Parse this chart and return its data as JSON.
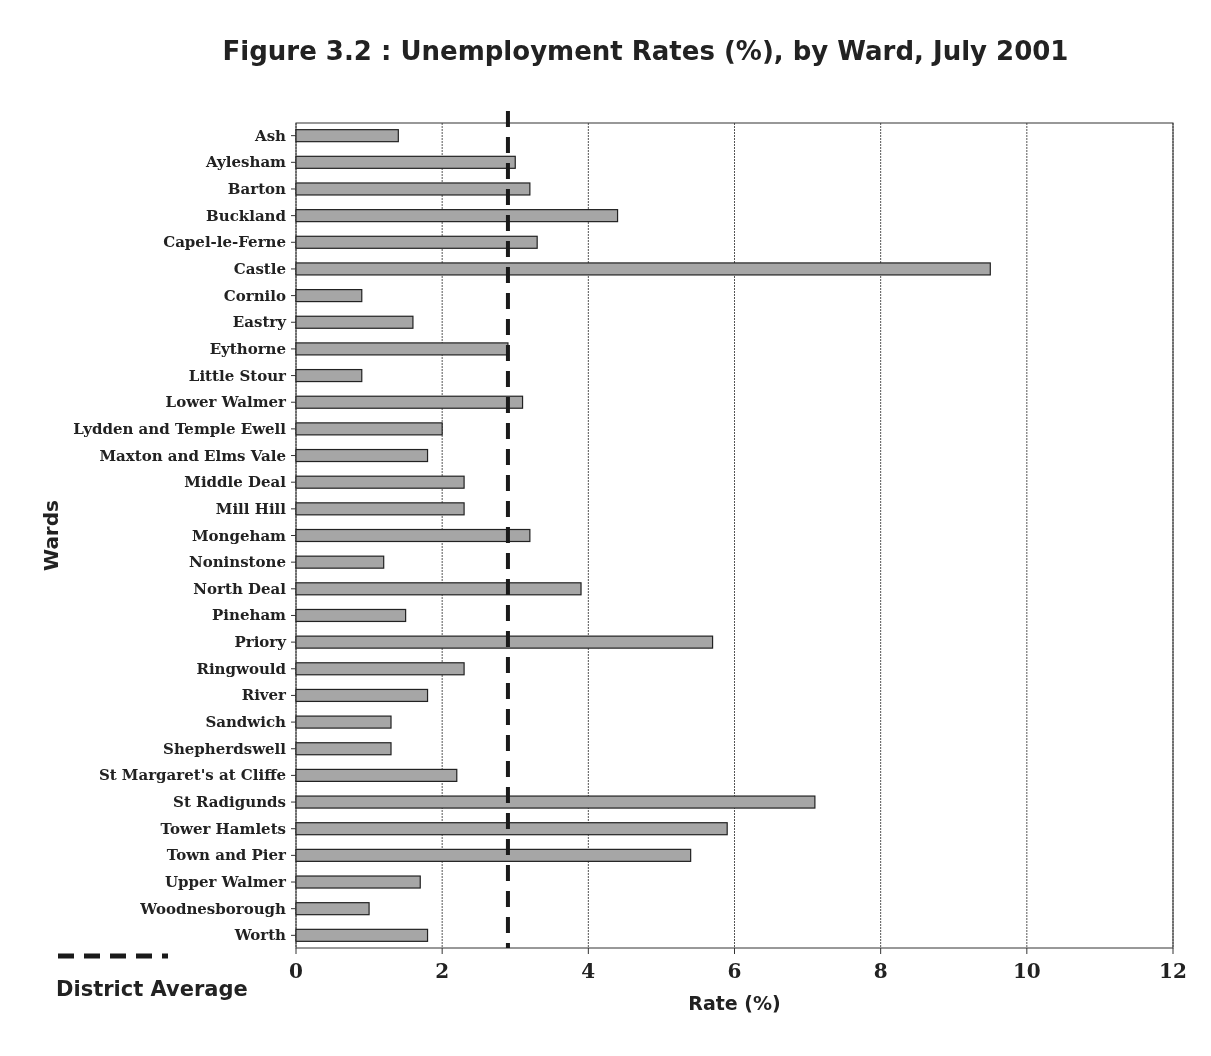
{
  "chart_data": {
    "type": "bar",
    "orientation": "horizontal",
    "title": "Figure 3.2 : Unemployment Rates (%), by Ward, July 2001",
    "xlabel": "Rate (%)",
    "ylabel": "Wards",
    "categories": [
      "Ash",
      "Aylesham",
      "Barton",
      "Buckland",
      "Capel-le-Ferne",
      "Castle",
      "Cornilo",
      "Eastry",
      "Eythorne",
      "Little Stour",
      "Lower Walmer",
      "Lydden and Temple Ewell",
      "Maxton and Elms Vale",
      "Middle Deal",
      "Mill Hill",
      "Mongeham",
      "Noninstone",
      "North Deal",
      "Pineham",
      "Priory",
      "Ringwould",
      "River",
      "Sandwich",
      "Shepherdswell",
      "St Margaret's at Cliffe",
      "St Radigunds",
      "Tower Hamlets",
      "Town and Pier",
      "Upper Walmer",
      "Woodnesborough",
      "Worth"
    ],
    "values": [
      1.4,
      3.0,
      3.2,
      4.4,
      3.3,
      9.5,
      0.9,
      1.6,
      2.9,
      0.9,
      3.1,
      2.0,
      1.8,
      2.3,
      2.3,
      3.2,
      1.2,
      3.9,
      1.5,
      5.7,
      2.3,
      1.8,
      1.3,
      1.3,
      2.2,
      7.1,
      5.9,
      5.4,
      1.7,
      1.0,
      1.8
    ],
    "color": "#a6a6a6",
    "xlim": [
      0,
      12
    ],
    "xticks": [
      0,
      2,
      4,
      6,
      8,
      10,
      12
    ],
    "grid": "x",
    "ref_lines": [
      {
        "axis": "x",
        "value": 2.9,
        "label": "District Average",
        "color": "#1a1a1a",
        "line_style": "dashed"
      }
    ]
  }
}
